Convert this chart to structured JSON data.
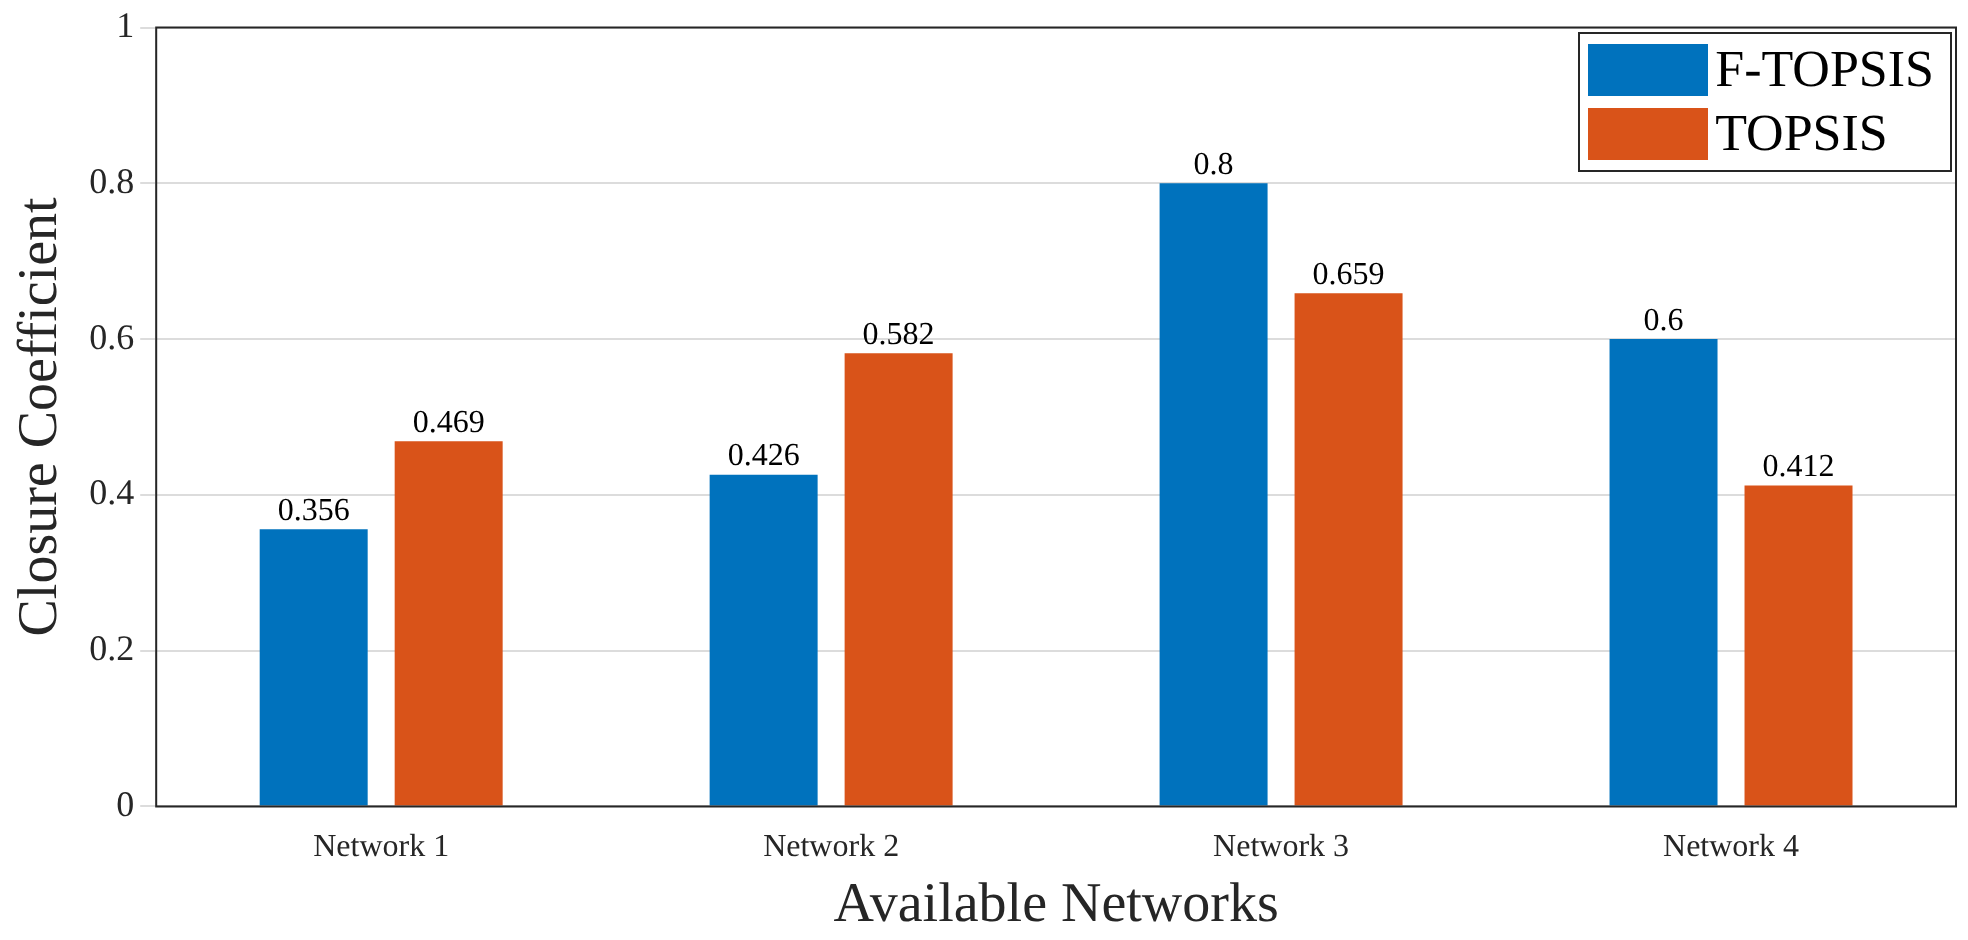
{
  "chart_data": {
    "type": "bar",
    "xlabel": "Available Networks",
    "ylabel": "Closure Coefficient",
    "categories": [
      "Network 1",
      "Network 2",
      "Network 3",
      "Network 4"
    ],
    "series": [
      {
        "name": "F-TOPSIS",
        "color": "#0072bd",
        "values": [
          0.356,
          0.426,
          0.8,
          0.6
        ]
      },
      {
        "name": "TOPSIS",
        "color": "#d95319",
        "values": [
          0.469,
          0.582,
          0.659,
          0.412
        ]
      }
    ],
    "ylim": [
      0,
      1
    ],
    "yticks": [
      0,
      0.2,
      0.4,
      0.6,
      0.8,
      1
    ],
    "grid": "y",
    "legend": "top right",
    "data_labels": true
  }
}
